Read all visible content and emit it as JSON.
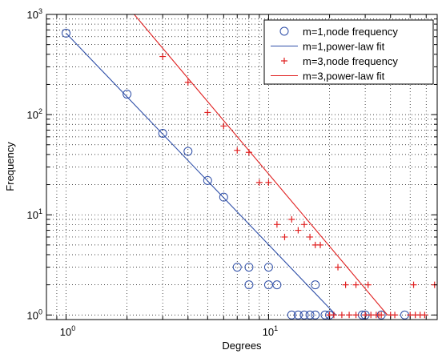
{
  "chart_data": {
    "type": "scatter",
    "title": "",
    "xlabel": "Degrees",
    "ylabel": "Frequency",
    "xscale": "log",
    "yscale": "log",
    "xlim": [
      0.8,
      68
    ],
    "ylim": [
      0.9,
      1000
    ],
    "grid": true,
    "legend_position": "top-right",
    "x_ticks": [
      {
        "value": 1,
        "base": "10",
        "exp": "0"
      },
      {
        "value": 10,
        "base": "10",
        "exp": "1"
      }
    ],
    "y_ticks": [
      {
        "value": 1,
        "base": "10",
        "exp": "0"
      },
      {
        "value": 10,
        "base": "10",
        "exp": "1"
      },
      {
        "value": 100,
        "base": "10",
        "exp": "2"
      },
      {
        "value": 1000,
        "base": "10",
        "exp": "3"
      }
    ],
    "series": [
      {
        "name": "m=1,node frequency",
        "kind": "scatter",
        "marker": "circle",
        "color": "#2f4fa8",
        "points": [
          [
            1,
            650
          ],
          [
            2,
            160
          ],
          [
            3,
            65
          ],
          [
            4,
            43
          ],
          [
            5,
            22
          ],
          [
            6,
            15
          ],
          [
            7,
            3
          ],
          [
            8,
            3
          ],
          [
            8,
            2
          ],
          [
            10,
            3
          ],
          [
            10,
            2
          ],
          [
            11,
            2
          ],
          [
            17,
            2
          ],
          [
            13,
            1
          ],
          [
            14,
            1
          ],
          [
            15,
            1
          ],
          [
            16,
            1
          ],
          [
            17,
            1
          ],
          [
            19,
            1
          ],
          [
            20,
            1
          ],
          [
            29,
            1
          ],
          [
            30,
            1
          ],
          [
            36,
            1
          ],
          [
            47,
            1
          ]
        ]
      },
      {
        "name": "m=1,power-law fit",
        "kind": "line",
        "color": "#2f4fa8",
        "points": [
          [
            1,
            650
          ],
          [
            21.5,
            1
          ]
        ]
      },
      {
        "name": "m=3,node frequency",
        "kind": "scatter",
        "marker": "plus",
        "color": "#e02020",
        "points": [
          [
            3,
            380
          ],
          [
            4,
            210
          ],
          [
            5,
            105
          ],
          [
            6,
            77
          ],
          [
            7,
            44
          ],
          [
            8,
            42
          ],
          [
            9,
            21
          ],
          [
            10,
            21
          ],
          [
            11,
            8
          ],
          [
            12,
            6
          ],
          [
            13,
            9
          ],
          [
            14,
            7
          ],
          [
            15,
            8
          ],
          [
            16,
            6
          ],
          [
            17,
            5
          ],
          [
            18,
            5
          ],
          [
            22,
            3
          ],
          [
            24,
            2
          ],
          [
            27,
            2
          ],
          [
            31,
            2
          ],
          [
            52,
            2
          ],
          [
            66,
            2
          ],
          [
            20,
            1
          ],
          [
            21,
            1
          ],
          [
            23,
            1
          ],
          [
            25,
            1
          ],
          [
            27,
            1
          ],
          [
            30,
            1
          ],
          [
            32,
            1
          ],
          [
            34,
            1
          ],
          [
            35,
            1
          ],
          [
            36,
            1
          ],
          [
            40,
            1
          ],
          [
            42,
            1
          ],
          [
            50,
            1
          ],
          [
            53,
            1
          ],
          [
            56,
            1
          ],
          [
            59,
            1
          ]
        ]
      },
      {
        "name": "m=3,power-law fit",
        "kind": "line",
        "color": "#e02020",
        "points": [
          [
            2.17,
            1000
          ],
          [
            38.6,
            1
          ]
        ]
      }
    ]
  }
}
